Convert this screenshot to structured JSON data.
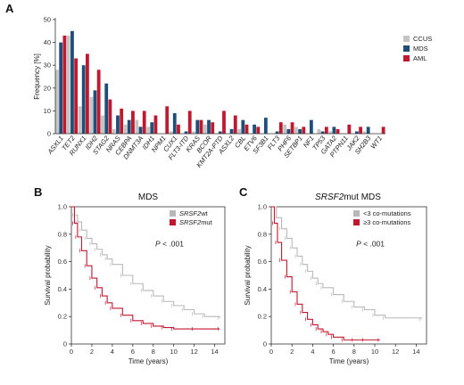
{
  "panels": {
    "A": {
      "letter": "A"
    },
    "B": {
      "letter": "B",
      "title": "MDS"
    },
    "C": {
      "letter": "C",
      "title_italic": "SRSF2",
      "title_rest": "mut MDS"
    }
  },
  "chart_data": [
    {
      "panel": "A",
      "type": "bar",
      "ylabel": "Frequency [%]",
      "ylim": [
        0,
        50
      ],
      "yticks": [
        "0",
        "10",
        "20",
        "30",
        "40",
        "50"
      ],
      "legend_position": "right",
      "colors": {
        "CCUS": "#c4c4c4",
        "MDS": "#1f4e79",
        "AML": "#c0182f"
      },
      "categories": [
        "ASXL1",
        "TET2",
        "RUNX1",
        "IDH2",
        "STAG2",
        "NRAS",
        "CEBPA",
        "DNMT3A",
        "IDH1",
        "NPM1",
        "CUX1",
        "FLT3-ITD",
        "KRAS",
        "BCOR",
        "KMT2A-PTD",
        "ASXL2",
        "CBL",
        "ETV6",
        "SF3B1",
        "FLT3",
        "PHF6",
        "SETBP1",
        "NF1",
        "TP53",
        "GATA2",
        "PTPN11",
        "JAK2",
        "SH2B3",
        "WT1"
      ],
      "series": [
        {
          "name": "CCUS",
          "values": [
            28,
            43,
            12,
            16,
            8,
            2,
            4,
            6,
            3,
            0,
            1,
            0,
            1,
            4,
            0,
            0,
            2,
            0,
            0,
            0,
            4,
            3,
            0,
            2,
            1,
            0,
            0,
            1,
            0
          ]
        },
        {
          "name": "MDS",
          "values": [
            40,
            45,
            30,
            19,
            22,
            8,
            6,
            3,
            5,
            0,
            9,
            1,
            6,
            6,
            1,
            2,
            6,
            4,
            7,
            1,
            2,
            2,
            6,
            1,
            3,
            0,
            1,
            3,
            0
          ]
        },
        {
          "name": "AML",
          "values": [
            43,
            33,
            35,
            28,
            15,
            11,
            10,
            10,
            8,
            12,
            4,
            10,
            6,
            5,
            10,
            8,
            4,
            3,
            0,
            5,
            5,
            3,
            0,
            3,
            2,
            4,
            3,
            0,
            3
          ]
        }
      ]
    },
    {
      "panel": "B",
      "type": "line",
      "title": "MDS",
      "xlabel": "Time (years)",
      "ylabel": "Survival probability",
      "xlim": [
        0,
        15
      ],
      "ylim": [
        0,
        1
      ],
      "xticks": [
        "0",
        "2",
        "4",
        "6",
        "8",
        "10",
        "12",
        "14"
      ],
      "yticks": [
        "0",
        "0.2",
        "0.4",
        "0.6",
        "0.8",
        "1.0"
      ],
      "pvalue_prefix": "P",
      "pvalue_rest": " < .001",
      "series": [
        {
          "name": "SRSF2",
          "name_suffix": "wt",
          "color": "#b8b8b8",
          "x": [
            0,
            0.3,
            0.6,
            1,
            1.5,
            2,
            2.5,
            3,
            3.5,
            4,
            5,
            6,
            7,
            8,
            9,
            10,
            11,
            12,
            13,
            14.5
          ],
          "y": [
            1.0,
            0.94,
            0.89,
            0.83,
            0.77,
            0.73,
            0.69,
            0.65,
            0.62,
            0.58,
            0.5,
            0.44,
            0.39,
            0.35,
            0.31,
            0.28,
            0.25,
            0.22,
            0.2,
            0.19
          ]
        },
        {
          "name": "SRSF2",
          "name_suffix": "mut",
          "color": "#c0182f",
          "x": [
            0,
            0.3,
            0.6,
            1,
            1.5,
            2,
            2.5,
            3,
            3.5,
            4,
            5,
            6,
            7,
            8,
            9,
            10,
            12,
            14.5
          ],
          "y": [
            1.0,
            0.88,
            0.78,
            0.68,
            0.57,
            0.48,
            0.41,
            0.35,
            0.3,
            0.26,
            0.21,
            0.17,
            0.15,
            0.13,
            0.12,
            0.11,
            0.11,
            0.11
          ]
        }
      ]
    },
    {
      "panel": "C",
      "type": "line",
      "title": "SRSF2mut MDS",
      "xlabel": "Time (years)",
      "ylabel": "Survival probability",
      "xlim": [
        0,
        15
      ],
      "ylim": [
        0,
        1
      ],
      "xticks": [
        "0",
        "2",
        "4",
        "6",
        "8",
        "10",
        "12",
        "14"
      ],
      "yticks": [
        "0",
        "0.2",
        "0.4",
        "0.6",
        "0.8",
        "1.0"
      ],
      "pvalue_prefix": "P",
      "pvalue_rest": " < .001",
      "series": [
        {
          "name": "<3 co-mutations",
          "color": "#b8b8b8",
          "x": [
            0,
            0.5,
            1,
            1.5,
            2,
            2.5,
            3,
            3.5,
            4,
            4.5,
            5,
            6,
            7,
            8,
            9,
            10,
            11,
            14.5
          ],
          "y": [
            1.0,
            0.92,
            0.84,
            0.77,
            0.7,
            0.64,
            0.58,
            0.53,
            0.48,
            0.44,
            0.41,
            0.36,
            0.31,
            0.27,
            0.25,
            0.21,
            0.19,
            0.18
          ]
        },
        {
          "name": "≥3 co-mutations",
          "color": "#c0182f",
          "x": [
            0,
            0.3,
            0.6,
            1,
            1.5,
            2,
            2.5,
            3,
            3.5,
            4,
            4.5,
            5,
            5.5,
            6,
            7,
            8,
            9,
            10.5
          ],
          "y": [
            1.0,
            0.88,
            0.74,
            0.61,
            0.49,
            0.38,
            0.29,
            0.23,
            0.18,
            0.14,
            0.11,
            0.09,
            0.07,
            0.05,
            0.03,
            0.03,
            0.03,
            0.03
          ]
        }
      ]
    }
  ]
}
